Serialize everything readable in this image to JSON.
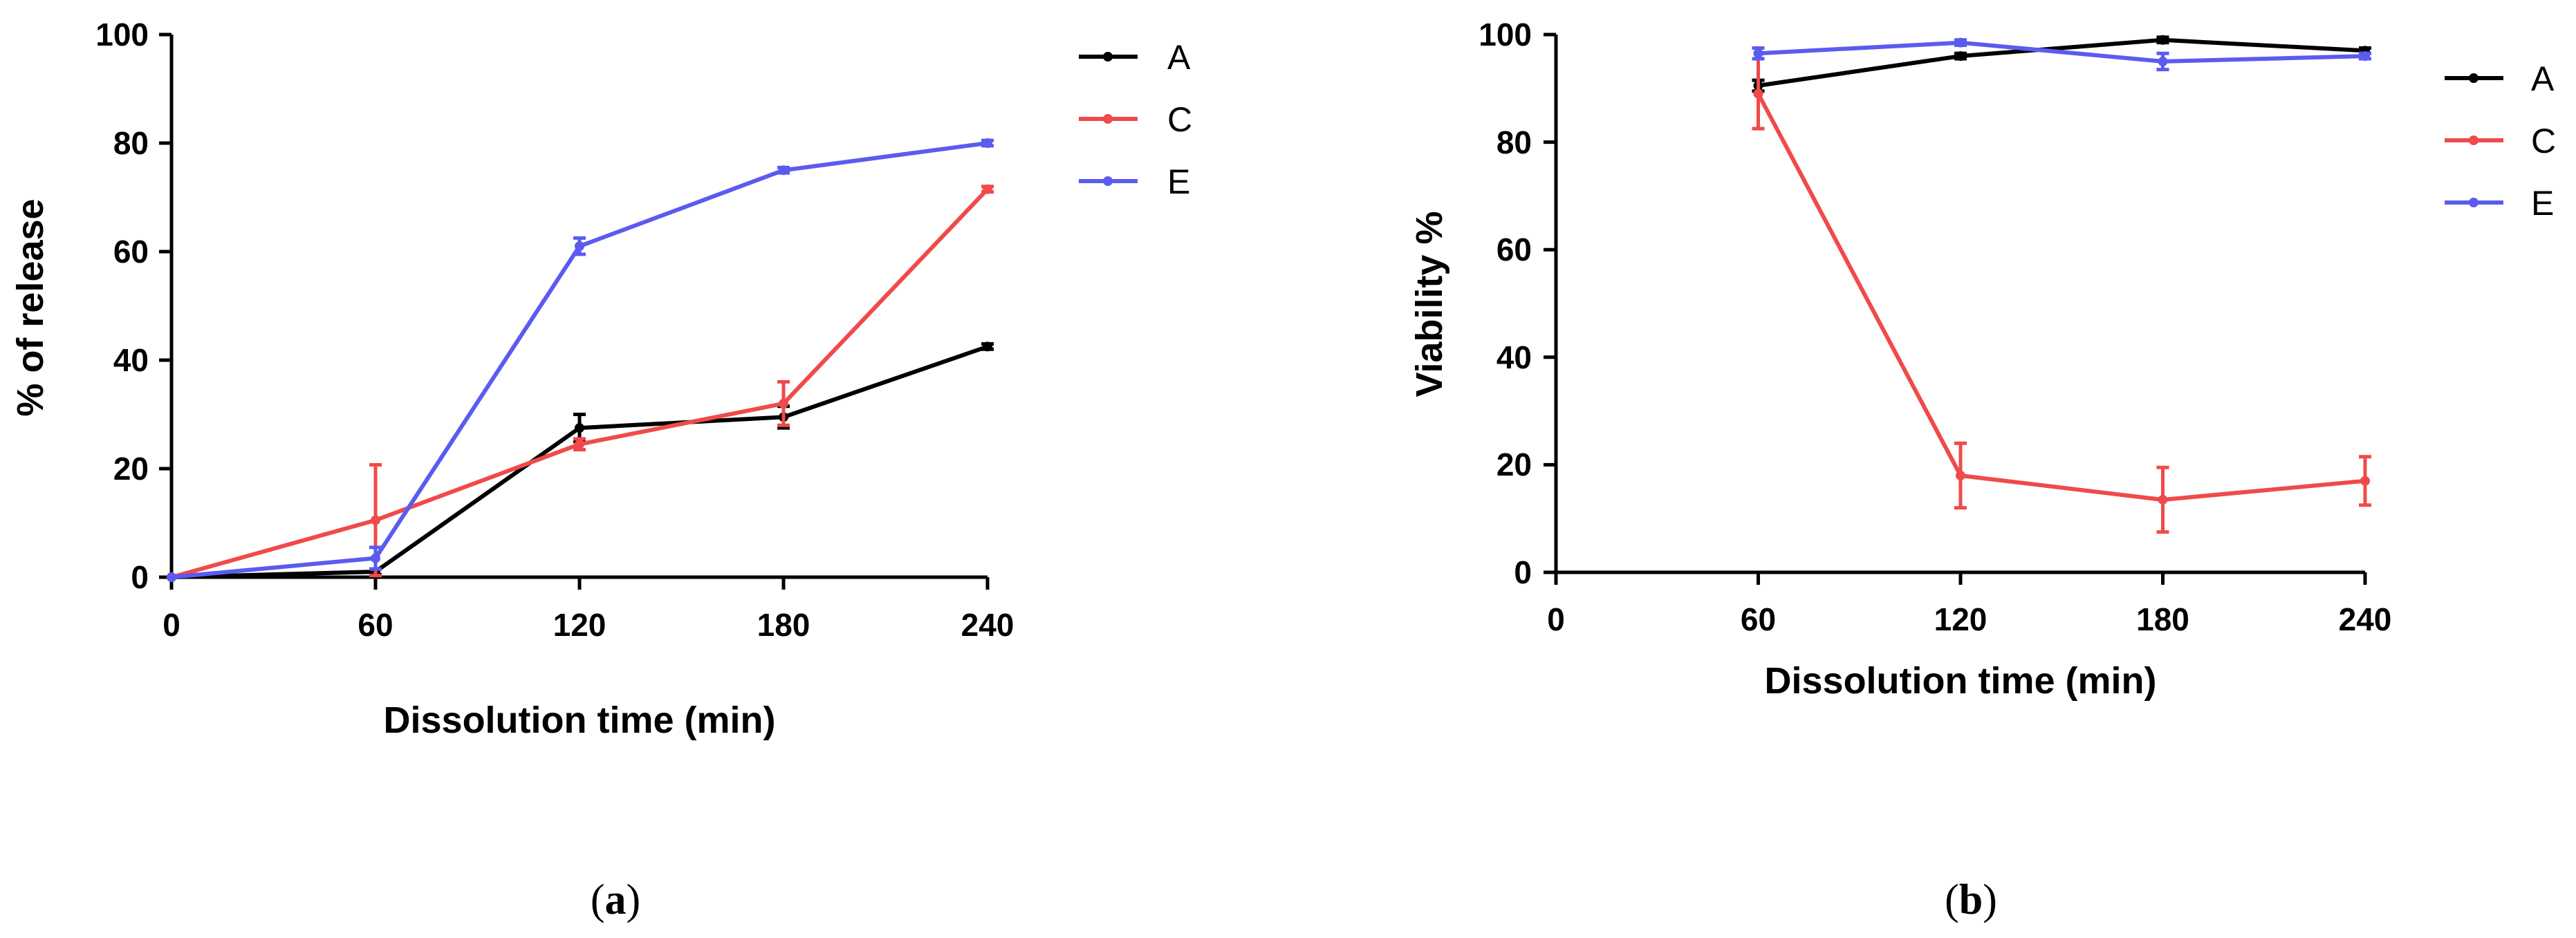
{
  "chart_data": [
    {
      "type": "line",
      "panel_label_open": "(",
      "panel_label_letter": "a",
      "panel_label_close": ")",
      "xlabel": "Dissolution time (min)",
      "ylabel": "% of release",
      "xlim": [
        0,
        240
      ],
      "ylim": [
        0,
        100
      ],
      "xticks": [
        0,
        60,
        120,
        180,
        240
      ],
      "yticks": [
        0,
        20,
        40,
        60,
        80,
        100
      ],
      "grid": false,
      "legend_position": "top-right-outside",
      "series": [
        {
          "name": "A",
          "color": "#000000",
          "x": [
            0,
            60,
            120,
            180,
            240
          ],
          "y": [
            0,
            1,
            27.5,
            29.5,
            42.5
          ],
          "err": [
            0,
            0.5,
            2.5,
            2.0,
            0.5
          ]
        },
        {
          "name": "C",
          "color": "#f04a4a",
          "x": [
            0,
            60,
            120,
            180,
            240
          ],
          "y": [
            0,
            10.5,
            24.5,
            32,
            71.5
          ],
          "err": [
            0,
            10.2,
            1.0,
            4.0,
            0.5
          ]
        },
        {
          "name": "E",
          "color": "#5b5bf0",
          "x": [
            0,
            60,
            120,
            180,
            240
          ],
          "y": [
            0,
            3.5,
            61,
            75,
            80
          ],
          "err": [
            0,
            2.0,
            1.5,
            0.5,
            0.5
          ]
        }
      ]
    },
    {
      "type": "line",
      "panel_label_open": "(",
      "panel_label_letter": "b",
      "panel_label_close": ")",
      "xlabel": "Dissolution time (min)",
      "ylabel": "Viability %",
      "xlim": [
        0,
        240
      ],
      "ylim": [
        0,
        100
      ],
      "xticks": [
        0,
        60,
        120,
        180,
        240
      ],
      "yticks": [
        0,
        20,
        40,
        60,
        80,
        100
      ],
      "grid": false,
      "legend_position": "top-right-outside",
      "series": [
        {
          "name": "A",
          "color": "#000000",
          "x": [
            60,
            120,
            180,
            240
          ],
          "y": [
            90.5,
            96,
            99,
            97
          ],
          "err": [
            1.0,
            0.5,
            0.5,
            0.5
          ]
        },
        {
          "name": "C",
          "color": "#f04a4a",
          "x": [
            60,
            120,
            180,
            240
          ],
          "y": [
            89,
            18,
            13.5,
            17
          ],
          "err": [
            6.5,
            6.0,
            6.0,
            4.5
          ]
        },
        {
          "name": "E",
          "color": "#5b5bf0",
          "x": [
            60,
            120,
            180,
            240
          ],
          "y": [
            96.5,
            98.5,
            95,
            96
          ],
          "err": [
            1.0,
            0.5,
            1.5,
            0.5
          ]
        }
      ]
    }
  ]
}
